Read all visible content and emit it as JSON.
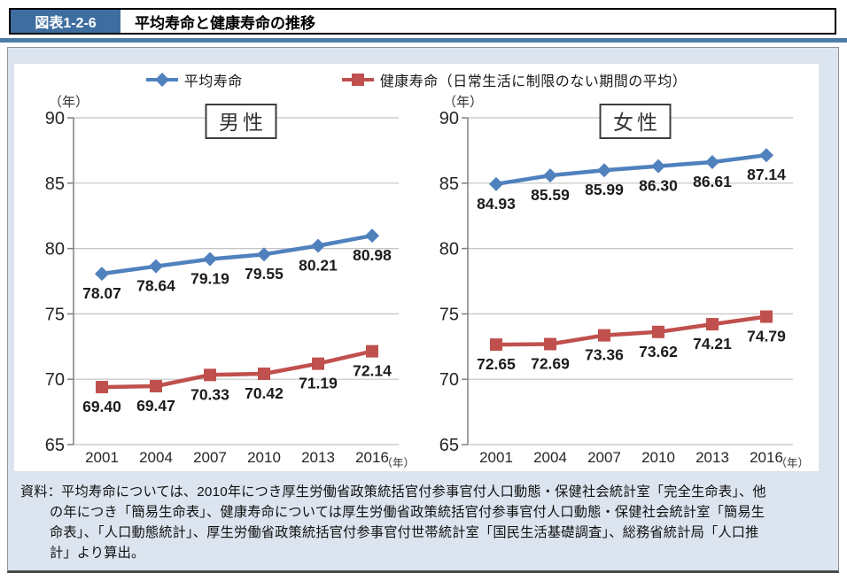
{
  "header": {
    "tag": "図表1-2-6",
    "title": "平均寿命と健康寿命の推移"
  },
  "legend": {
    "items": [
      {
        "label": "平均寿命",
        "color": "#4F81BD",
        "marker": "diamond"
      },
      {
        "label": "健康寿命（日常生活に制限のない期間の平均）",
        "color": "#C0504D",
        "marker": "square"
      }
    ]
  },
  "chart_data": [
    {
      "type": "line",
      "title": "男性",
      "y_axis_unit": "（年）",
      "x_axis_unit": "（年）",
      "categories": [
        "2001",
        "2004",
        "2007",
        "2010",
        "2013",
        "2016"
      ],
      "ylim": [
        65,
        90
      ],
      "yticks": [
        90,
        85,
        80,
        75,
        70,
        65
      ],
      "grid": true,
      "series": [
        {
          "name": "平均寿命",
          "color": "#4F81BD",
          "marker": "diamond",
          "values": [
            78.07,
            78.64,
            79.19,
            79.55,
            80.21,
            80.98
          ]
        },
        {
          "name": "健康寿命（日常生活に制限のない期間の平均）",
          "color": "#C0504D",
          "marker": "square",
          "values": [
            69.4,
            69.47,
            70.33,
            70.42,
            71.19,
            72.14
          ]
        }
      ]
    },
    {
      "type": "line",
      "title": "女性",
      "y_axis_unit": "（年）",
      "x_axis_unit": "（年）",
      "categories": [
        "2001",
        "2004",
        "2007",
        "2010",
        "2013",
        "2016"
      ],
      "ylim": [
        65,
        90
      ],
      "yticks": [
        90,
        85,
        80,
        75,
        70,
        65
      ],
      "grid": true,
      "series": [
        {
          "name": "平均寿命",
          "color": "#4F81BD",
          "marker": "diamond",
          "values": [
            84.93,
            85.59,
            85.99,
            86.3,
            86.61,
            87.14
          ]
        },
        {
          "name": "健康寿命（日常生活に制限のない期間の平均）",
          "color": "#C0504D",
          "marker": "square",
          "values": [
            72.65,
            72.69,
            73.36,
            73.62,
            74.21,
            74.79
          ]
        }
      ]
    }
  ],
  "footer": {
    "lines": [
      "資料：平均寿命については、2010年につき厚生労働省政策統括官付参事官付人口動態・保健社会統計室「完全生命表」、他",
      "の年につき「簡易生命表」、健康寿命については厚生労働省政策統括官付参事官付人口動態・保健社会統計室「簡易生",
      "命表」、「人口動態統計」、厚生労働省政策統括官付参事官付世帯統計室「国民生活基礎調査」、総務省統計局「人口推",
      "計」より算出。"
    ]
  },
  "colors": {
    "accent_blue": "#4F81BD",
    "accent_red": "#C0504D",
    "header_tag_bg": "#3E6E9F",
    "panel_bg": "#DCE4EF",
    "rule_blue": "#4E7CA8",
    "gridline": "#C3C3C3",
    "axis": "#808080",
    "label_text": "#262626"
  }
}
